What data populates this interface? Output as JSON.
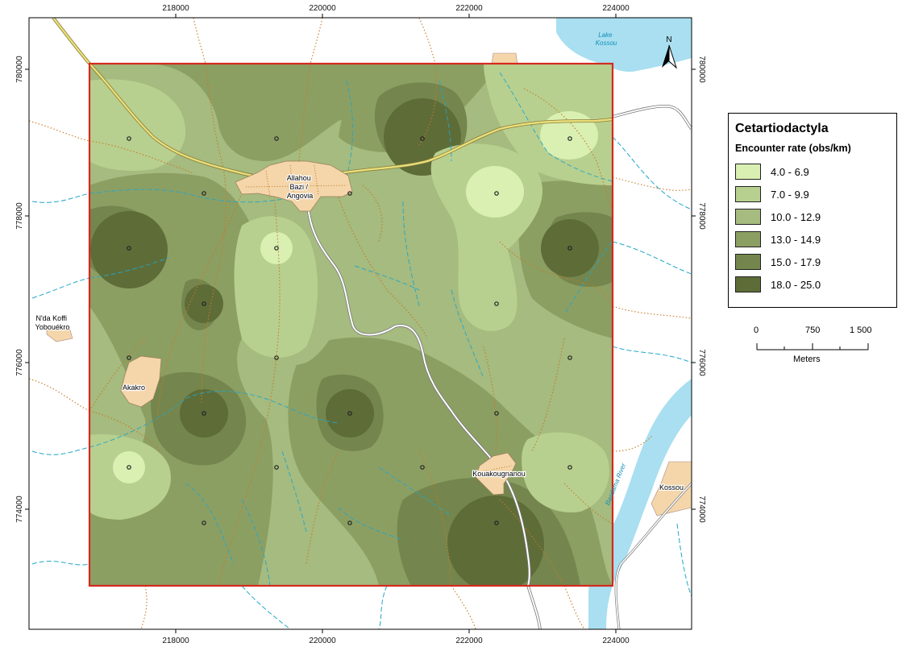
{
  "axes": {
    "x_ticks": [
      "218000",
      "220000",
      "222000",
      "224000"
    ],
    "y_ticks": [
      "780000",
      "778000",
      "776000",
      "774000"
    ]
  },
  "north_arrow": {
    "label": "N",
    "icon": "north-arrow-icon"
  },
  "places": [
    {
      "id": "allahou",
      "lines": [
        "Allahou",
        "Bazi /",
        "Angovia"
      ]
    },
    {
      "id": "akakro",
      "lines": [
        "Akakro"
      ]
    },
    {
      "id": "ndakoffi",
      "lines": [
        "N'da Koffi",
        "Yobouékro"
      ]
    },
    {
      "id": "kouakougnanou",
      "lines": [
        "Kouakougnanou"
      ]
    },
    {
      "id": "kossou",
      "lines": [
        "Kossou"
      ]
    }
  ],
  "water_labels": {
    "lake": [
      "Lake",
      "Kossou"
    ],
    "river": "Bandama River"
  },
  "legend": {
    "title": "Cetartiodactyla",
    "subtitle": "Encounter rate (obs/km)",
    "classes": [
      {
        "label": "4.0 - 6.9",
        "color": "#d9f0b2"
      },
      {
        "label": "7.0 - 9.9",
        "color": "#b8d08f"
      },
      {
        "label": "10.0 - 12.9",
        "color": "#a5bb7f"
      },
      {
        "label": "13.0 - 14.9",
        "color": "#8c9f63"
      },
      {
        "label": "15.0 - 17.9",
        "color": "#74864d"
      },
      {
        "label": "18.0 - 25.0",
        "color": "#5e6c38"
      }
    ]
  },
  "scale_bar": {
    "labels": [
      "0",
      "750",
      "1 500"
    ],
    "units": "Meters"
  },
  "colors": {
    "study_area_border": "#d42a1f",
    "water": "#a9dff0",
    "water_line": "#22a6c9",
    "settlement": "#f4d6aa",
    "track": "#c77a26",
    "main_road": "#e9e07a"
  }
}
